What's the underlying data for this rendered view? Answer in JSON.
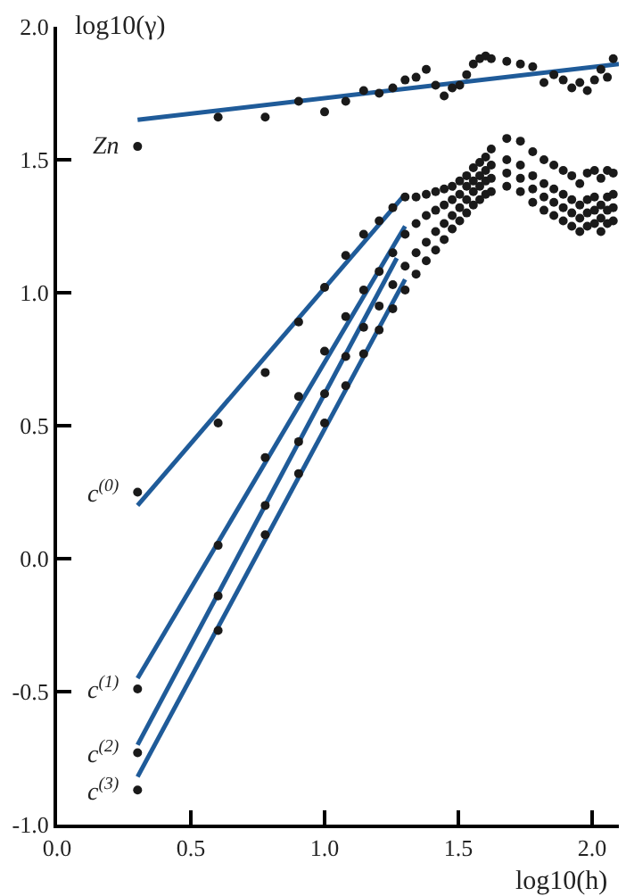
{
  "chart_data": {
    "type": "scatter",
    "xlabel": "log10(h)",
    "ylabel": "log10(γ)",
    "x": [
      0.301,
      0.602,
      0.778,
      0.903,
      1.0,
      1.079,
      1.146,
      1.204,
      1.255,
      1.301,
      1.342,
      1.38,
      1.415,
      1.447,
      1.477,
      1.505,
      1.531,
      1.556,
      1.58,
      1.602,
      1.623,
      1.681,
      1.732,
      1.778,
      1.82,
      1.857,
      1.892,
      1.924,
      1.954,
      1.982,
      2.009,
      2.033,
      2.057,
      2.079
    ],
    "series": [
      {
        "name": "Zn",
        "color": "#1a1a1a",
        "marker": "circle",
        "values": [
          1.55,
          1.66,
          1.66,
          1.72,
          1.68,
          1.72,
          1.76,
          1.75,
          1.77,
          1.8,
          1.81,
          1.84,
          1.78,
          1.74,
          1.77,
          1.78,
          1.82,
          1.86,
          1.88,
          1.89,
          1.88,
          1.87,
          1.86,
          1.85,
          1.79,
          1.82,
          1.8,
          1.77,
          1.79,
          1.76,
          1.8,
          1.84,
          1.81,
          1.88
        ]
      },
      {
        "name": "c$^{(0)}$",
        "color": "#1a1a1a",
        "marker": "circle",
        "values": [
          0.25,
          0.51,
          0.7,
          0.89,
          1.02,
          1.14,
          1.22,
          1.27,
          1.32,
          1.36,
          1.36,
          1.37,
          1.38,
          1.39,
          1.4,
          1.42,
          1.44,
          1.47,
          1.49,
          1.51,
          1.54,
          1.58,
          1.57,
          1.53,
          1.5,
          1.48,
          1.46,
          1.44,
          1.41,
          1.45,
          1.46,
          1.43,
          1.46,
          1.45
        ]
      },
      {
        "name": "c$^{(1)}$",
        "color": "#1a1a1a",
        "marker": "circle",
        "values": [
          -0.49,
          0.05,
          0.38,
          0.61,
          0.78,
          0.91,
          1.01,
          1.08,
          1.15,
          1.22,
          1.26,
          1.29,
          1.31,
          1.33,
          1.35,
          1.37,
          1.4,
          1.42,
          1.44,
          1.46,
          1.48,
          1.5,
          1.48,
          1.44,
          1.41,
          1.39,
          1.37,
          1.35,
          1.33,
          1.35,
          1.36,
          1.33,
          1.36,
          1.37
        ]
      },
      {
        "name": "c$^{(2)}$",
        "color": "#1a1a1a",
        "marker": "circle",
        "values": [
          -0.73,
          -0.14,
          0.2,
          0.44,
          0.62,
          0.76,
          0.87,
          0.95,
          1.03,
          1.1,
          1.15,
          1.19,
          1.23,
          1.26,
          1.29,
          1.32,
          1.35,
          1.38,
          1.4,
          1.42,
          1.43,
          1.45,
          1.43,
          1.39,
          1.36,
          1.34,
          1.32,
          1.3,
          1.28,
          1.3,
          1.31,
          1.28,
          1.31,
          1.32
        ]
      },
      {
        "name": "c$^{(3)}$",
        "color": "#1a1a1a",
        "marker": "circle",
        "values": [
          -0.87,
          -0.27,
          0.09,
          0.32,
          0.51,
          0.65,
          0.77,
          0.86,
          0.94,
          1.01,
          1.07,
          1.12,
          1.16,
          1.2,
          1.24,
          1.27,
          1.3,
          1.33,
          1.35,
          1.37,
          1.38,
          1.4,
          1.38,
          1.34,
          1.31,
          1.29,
          1.27,
          1.25,
          1.23,
          1.25,
          1.26,
          1.23,
          1.26,
          1.27
        ]
      },
      {
        "type": "line",
        "color": "#1f5b99",
        "marker": "none",
        "x": [
          0.301,
          2.1
        ],
        "values": [
          1.65,
          1.86
        ]
      },
      {
        "type": "line",
        "color": "#1f5b99",
        "marker": "none",
        "x": [
          0.301,
          1.301
        ],
        "values": [
          0.2,
          1.37
        ]
      },
      {
        "type": "line",
        "color": "#1f5b99",
        "marker": "none",
        "x": [
          0.301,
          1.301
        ],
        "values": [
          -0.45,
          1.25
        ]
      },
      {
        "type": "line",
        "color": "#1f5b99",
        "marker": "none",
        "x": [
          0.301,
          1.27
        ],
        "values": [
          -0.7,
          1.13
        ]
      },
      {
        "type": "line",
        "color": "#1f5b99",
        "marker": "none",
        "x": [
          0.301,
          1.301
        ],
        "values": [
          -0.82,
          1.05
        ]
      }
    ],
    "xlim": [
      0,
      2.1
    ],
    "ylim": [
      -1.0,
      2.0
    ],
    "xticks": [
      {
        "value": 0,
        "label": "0.0"
      },
      0.5,
      {
        "value": 1,
        "label": "1.0"
      },
      1.5,
      {
        "value": 2,
        "label": "2.0"
      }
    ],
    "yticks": [
      {
        "value": -1,
        "label": "-1.0"
      },
      -0.5,
      {
        "value": 0,
        "label": "0.0"
      },
      0.5,
      {
        "value": 1,
        "label": "1.0"
      },
      1.5,
      {
        "value": 2,
        "label": "2.0"
      }
    ]
  }
}
